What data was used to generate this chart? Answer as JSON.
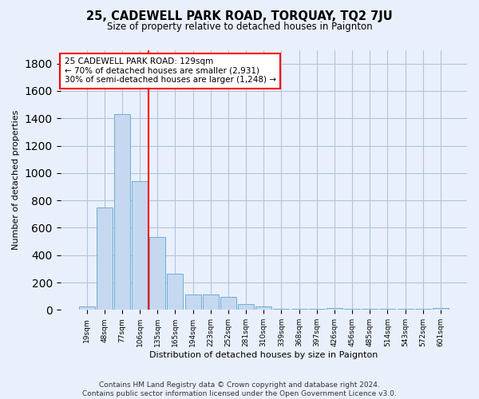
{
  "title": "25, CADEWELL PARK ROAD, TORQUAY, TQ2 7JU",
  "subtitle": "Size of property relative to detached houses in Paignton",
  "xlabel": "Distribution of detached houses by size in Paignton",
  "ylabel": "Number of detached properties",
  "footer_line1": "Contains HM Land Registry data © Crown copyright and database right 2024.",
  "footer_line2": "Contains public sector information licensed under the Open Government Licence v3.0.",
  "bar_labels": [
    "19sqm",
    "48sqm",
    "77sqm",
    "106sqm",
    "135sqm",
    "165sqm",
    "194sqm",
    "223sqm",
    "252sqm",
    "281sqm",
    "310sqm",
    "339sqm",
    "368sqm",
    "397sqm",
    "426sqm",
    "456sqm",
    "485sqm",
    "514sqm",
    "543sqm",
    "572sqm",
    "601sqm"
  ],
  "bar_values": [
    25,
    750,
    1430,
    940,
    530,
    265,
    110,
    110,
    95,
    45,
    25,
    5,
    5,
    5,
    15,
    5,
    5,
    5,
    5,
    5,
    15
  ],
  "bar_color": "#c5d8f0",
  "bar_edge_color": "#6baed6",
  "grid_color": "#b0c4de",
  "background_color": "#eaf0fb",
  "vline_color": "red",
  "annotation_text": "25 CADEWELL PARK ROAD: 129sqm\n← 70% of detached houses are smaller (2,931)\n30% of semi-detached houses are larger (1,248) →",
  "annotation_box_color": "white",
  "annotation_box_edge_color": "red",
  "ylim": [
    0,
    1900
  ],
  "yticks": [
    0,
    200,
    400,
    600,
    800,
    1000,
    1200,
    1400,
    1600,
    1800
  ]
}
